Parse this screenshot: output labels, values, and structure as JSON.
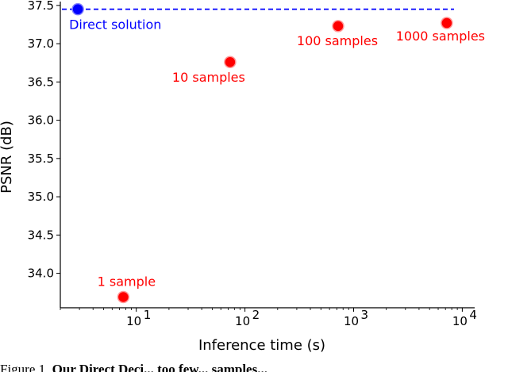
{
  "chart_data": {
    "type": "scatter",
    "title": "",
    "xlabel": "Inference time (s)",
    "ylabel": "PSNR (dB)",
    "xscale": "log",
    "xlim": [
      2.0,
      13000
    ],
    "ylim": [
      33.55,
      37.55
    ],
    "grid": false,
    "x_ticks": [
      {
        "value": 10,
        "label": "10",
        "exp": "1"
      },
      {
        "value": 100,
        "label": "10",
        "exp": "2"
      },
      {
        "value": 1000,
        "label": "10",
        "exp": "3"
      },
      {
        "value": 10000,
        "label": "10",
        "exp": "4"
      }
    ],
    "y_ticks": [
      "34.0",
      "34.5",
      "35.0",
      "35.5",
      "36.0",
      "36.5",
      "37.0",
      "37.5"
    ],
    "reference": {
      "label": "Direct solution",
      "x": 2.9,
      "y": 37.45,
      "color": "#0000ff",
      "linestyle": "dashed"
    },
    "points": [
      {
        "label": "1 sample",
        "x": 7.6,
        "y": 33.69,
        "color": "#ff0000"
      },
      {
        "label": "10 samples",
        "x": 73,
        "y": 36.76,
        "color": "#ff0000"
      },
      {
        "label": "100 samples",
        "x": 720,
        "y": 37.23,
        "color": "#ff0000"
      },
      {
        "label": "1000 samples",
        "x": 7200,
        "y": 37.27,
        "color": "#ff0000"
      }
    ]
  },
  "caption": {
    "prefix": "Figure 1.",
    "bold": "Our Direct Deci... too few... samples..."
  }
}
